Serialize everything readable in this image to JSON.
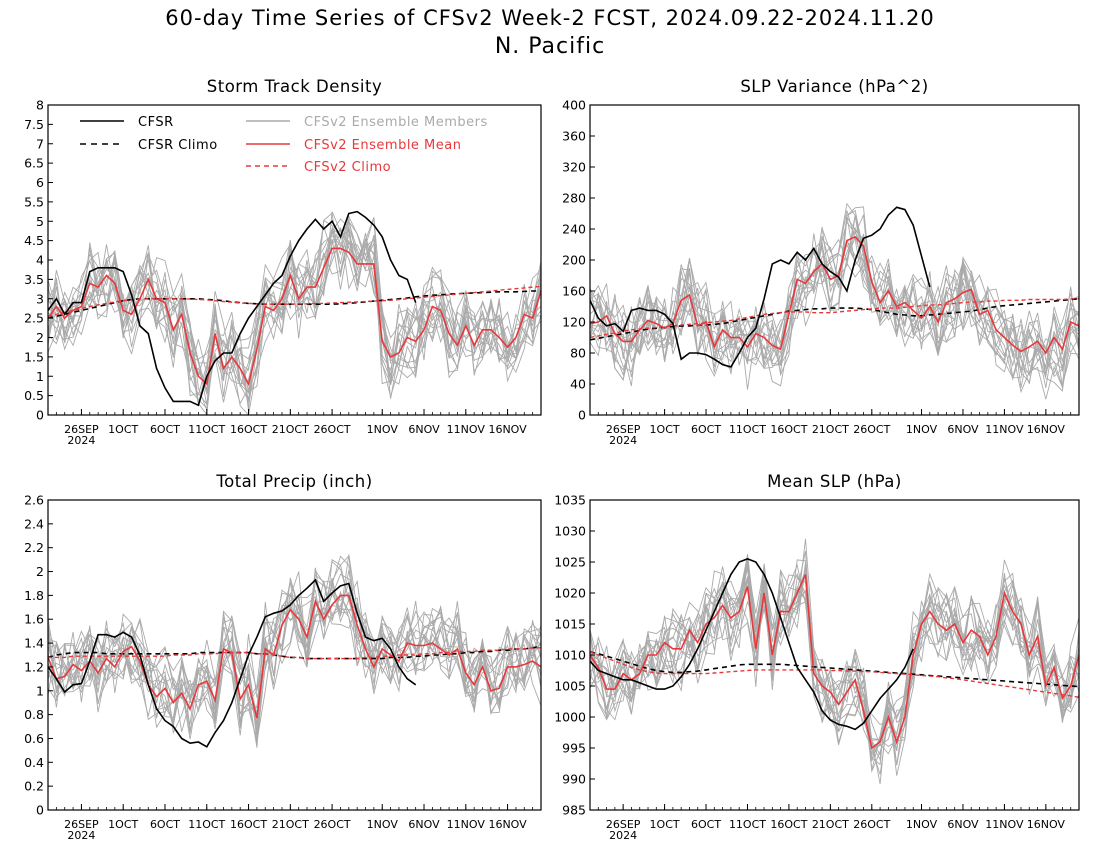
{
  "figure": {
    "title": "60-day Time Series of CFSv2 Week-2 FCST, 2024.09.22-2024.11.20",
    "subtitle": "N. Pacific"
  },
  "colors": {
    "cfsr": "#000000",
    "cfsv2_mean": "#e8383b",
    "members": "#aaaaaa"
  },
  "legend": {
    "cfsr": "CFSR",
    "cfsr_climo": "CFSR Climo",
    "members": "CFSv2 Ensemble Members",
    "ens_mean": "CFSv2 Ensemble Mean",
    "cfsv2_climo": "CFSv2 Climo"
  },
  "x_axis": {
    "start_date": "2024-09-22",
    "end_date": "2024-11-20",
    "tick_labels": [
      "26SEP",
      "1OCT",
      "6OCT",
      "11OCT",
      "16OCT",
      "21OCT",
      "26OCT",
      "1NOV",
      "6NOV",
      "11NOV",
      "16NOV"
    ],
    "year_label": "2024"
  },
  "chart_data": [
    {
      "type": "line",
      "title": "Storm Track Density",
      "ylim": [
        0,
        8
      ],
      "yticks": [
        "0",
        "0.5",
        "1",
        "1.5",
        "2",
        "2.5",
        "3",
        "3.5",
        "4",
        "4.5",
        "5",
        "5.5",
        "6",
        "6.5",
        "7",
        "7.5",
        "8"
      ],
      "series": [
        {
          "name": "CFSR",
          "values": [
            2.7,
            3.0,
            2.6,
            2.9,
            2.9,
            3.7,
            3.8,
            3.8,
            3.8,
            3.7,
            3.1,
            2.3,
            2.1,
            1.2,
            0.7,
            0.35,
            0.35,
            0.35,
            0.25,
            1.0,
            1.4,
            1.6,
            1.6,
            2.1,
            2.5,
            2.8,
            3.1,
            3.4,
            3.6,
            4.1,
            4.5,
            4.8,
            5.05,
            4.8,
            5.0,
            4.6,
            5.2,
            5.25,
            5.1,
            4.9,
            4.6,
            4.0,
            3.6,
            3.5,
            2.9
          ]
        },
        {
          "name": "CFSR Climo",
          "values": [
            2.5,
            2.55,
            2.6,
            2.65,
            2.7,
            2.75,
            2.8,
            2.85,
            2.9,
            2.95,
            2.98,
            3.0,
            3.0,
            3.0,
            3.0,
            3.0,
            3.0,
            3.0,
            3.0,
            2.98,
            2.97,
            2.95,
            2.92,
            2.9,
            2.88,
            2.87,
            2.86,
            2.86,
            2.86,
            2.86,
            2.86,
            2.86,
            2.86,
            2.86,
            2.86,
            2.87,
            2.88,
            2.9,
            2.92,
            2.94,
            2.96,
            2.98,
            3.0,
            3.02,
            3.05,
            3.07,
            3.09,
            3.1,
            3.12,
            3.13,
            3.14,
            3.15,
            3.16,
            3.17,
            3.18,
            3.18,
            3.18,
            3.19,
            3.2,
            3.2
          ]
        },
        {
          "name": "CFSv2 Ensemble Mean",
          "values": [
            2.5,
            2.8,
            2.5,
            2.7,
            2.8,
            3.4,
            3.3,
            3.6,
            3.4,
            2.7,
            2.6,
            3.0,
            3.5,
            3.0,
            2.9,
            2.2,
            2.6,
            1.6,
            1.0,
            0.8,
            2.1,
            1.2,
            1.5,
            1.2,
            0.8,
            1.7,
            2.8,
            2.7,
            3.0,
            3.6,
            3.0,
            3.3,
            3.3,
            3.8,
            4.3,
            4.3,
            4.2,
            3.9,
            3.9,
            3.9,
            1.9,
            1.5,
            1.6,
            2.0,
            1.9,
            2.2,
            2.8,
            2.7,
            2.1,
            1.8,
            2.3,
            1.8,
            2.2,
            2.2,
            2.0,
            1.75,
            2.0,
            2.6,
            2.5,
            3.2
          ]
        },
        {
          "name": "CFSv2 Climo",
          "values": [
            2.55,
            2.6,
            2.65,
            2.7,
            2.75,
            2.8,
            2.84,
            2.88,
            2.92,
            2.95,
            2.97,
            2.99,
            3.0,
            3.0,
            3.0,
            3.0,
            3.0,
            2.99,
            2.98,
            2.97,
            2.95,
            2.93,
            2.91,
            2.89,
            2.88,
            2.87,
            2.86,
            2.86,
            2.86,
            2.86,
            2.87,
            2.87,
            2.88,
            2.88,
            2.89,
            2.9,
            2.91,
            2.92,
            2.93,
            2.94,
            2.95,
            2.96,
            2.98,
            3.0,
            3.02,
            3.04,
            3.06,
            3.08,
            3.1,
            3.12,
            3.14,
            3.16,
            3.18,
            3.2,
            3.22,
            3.24,
            3.26,
            3.28,
            3.3,
            3.32
          ]
        }
      ]
    },
    {
      "type": "line",
      "title": "SLP Variance (hPa^2)",
      "ylim": [
        0,
        400
      ],
      "yticks": [
        "0",
        "40",
        "80",
        "120",
        "160",
        "200",
        "240",
        "280",
        "320",
        "360",
        "400"
      ],
      "series": [
        {
          "name": "CFSR",
          "values": [
            148,
            125,
            115,
            118,
            108,
            135,
            138,
            135,
            135,
            130,
            118,
            72,
            80,
            80,
            78,
            72,
            65,
            62,
            80,
            100,
            112,
            150,
            195,
            200,
            195,
            210,
            200,
            215,
            195,
            185,
            178,
            160,
            200,
            228,
            232,
            240,
            258,
            268,
            265,
            245,
            205,
            165
          ]
        },
        {
          "name": "CFSR Climo",
          "values": [
            97,
            99,
            101,
            103,
            105,
            107,
            109,
            111,
            112,
            113,
            114,
            115,
            115,
            116,
            116,
            117,
            118,
            120,
            122,
            124,
            126,
            128,
            130,
            132,
            134,
            135,
            136,
            137,
            137,
            138,
            138,
            138,
            138,
            137,
            136,
            134,
            132,
            130,
            129,
            128,
            128,
            129,
            130,
            131,
            132,
            133,
            134,
            136,
            138,
            140,
            141,
            142,
            143,
            144,
            145,
            146,
            147,
            148,
            149,
            150
          ]
        },
        {
          "name": "CFSv2 Ensemble Mean",
          "values": [
            118,
            120,
            128,
            105,
            95,
            95,
            110,
            122,
            118,
            112,
            118,
            148,
            155,
            115,
            120,
            88,
            110,
            100,
            100,
            88,
            105,
            100,
            90,
            85,
            130,
            175,
            170,
            185,
            195,
            175,
            180,
            225,
            230,
            218,
            172,
            145,
            160,
            140,
            145,
            135,
            125,
            140,
            120,
            145,
            150,
            158,
            162,
            130,
            135,
            110,
            100,
            90,
            82,
            88,
            95,
            80,
            100,
            85,
            120,
            115
          ]
        },
        {
          "name": "CFSv2 Climo",
          "values": [
            100,
            102,
            104,
            106,
            108,
            110,
            111,
            112,
            113,
            114,
            115,
            116,
            117,
            118,
            119,
            120,
            121,
            122,
            124,
            126,
            128,
            130,
            131,
            132,
            133,
            133,
            133,
            132,
            132,
            132,
            133,
            134,
            135,
            136,
            137,
            138,
            138,
            138,
            139,
            140,
            141,
            142,
            142,
            143,
            144,
            145,
            146,
            146,
            147,
            147,
            148,
            148,
            148,
            149,
            149,
            149,
            149,
            149,
            150,
            150
          ]
        }
      ]
    },
    {
      "type": "line",
      "title": "Total Precip (inch)",
      "ylim": [
        0,
        2.6
      ],
      "yticks": [
        "0",
        "0.2",
        "0.4",
        "0.6",
        "0.8",
        "1",
        "1.2",
        "1.4",
        "1.6",
        "1.8",
        "2",
        "2.2",
        "2.4",
        "2.6"
      ],
      "series": [
        {
          "name": "CFSR",
          "values": [
            1.2,
            1.1,
            0.99,
            1.05,
            1.06,
            1.25,
            1.47,
            1.47,
            1.45,
            1.49,
            1.45,
            1.3,
            1.05,
            0.85,
            0.75,
            0.7,
            0.6,
            0.56,
            0.57,
            0.53,
            0.65,
            0.75,
            0.9,
            1.1,
            1.3,
            1.45,
            1.62,
            1.65,
            1.67,
            1.72,
            1.8,
            1.86,
            1.93,
            1.75,
            1.82,
            1.88,
            1.9,
            1.65,
            1.45,
            1.42,
            1.44,
            1.35,
            1.2,
            1.1,
            1.05
          ]
        },
        {
          "name": "CFSR Climo",
          "values": [
            1.28,
            1.3,
            1.31,
            1.32,
            1.32,
            1.32,
            1.32,
            1.31,
            1.31,
            1.31,
            1.31,
            1.31,
            1.31,
            1.31,
            1.31,
            1.31,
            1.31,
            1.31,
            1.32,
            1.32,
            1.32,
            1.32,
            1.32,
            1.32,
            1.32,
            1.31,
            1.31,
            1.3,
            1.29,
            1.28,
            1.28,
            1.27,
            1.27,
            1.27,
            1.27,
            1.27,
            1.27,
            1.27,
            1.27,
            1.27,
            1.27,
            1.28,
            1.28,
            1.28,
            1.29,
            1.29,
            1.3,
            1.3,
            1.31,
            1.31,
            1.32,
            1.32,
            1.33,
            1.33,
            1.34,
            1.34,
            1.35,
            1.35,
            1.36,
            1.37
          ]
        },
        {
          "name": "CFSv2 Ensemble Mean",
          "values": [
            1.28,
            1.1,
            1.12,
            1.22,
            1.17,
            1.25,
            1.15,
            1.27,
            1.2,
            1.33,
            1.37,
            1.25,
            1.05,
            0.95,
            1.02,
            0.9,
            0.98,
            0.85,
            1.05,
            1.08,
            0.92,
            1.35,
            1.32,
            0.93,
            1.05,
            0.77,
            1.35,
            1.3,
            1.55,
            1.68,
            1.6,
            1.45,
            1.75,
            1.6,
            1.72,
            1.8,
            1.8,
            1.55,
            1.35,
            1.2,
            1.35,
            1.3,
            1.25,
            1.4,
            1.38,
            1.38,
            1.4,
            1.35,
            1.3,
            1.35,
            1.15,
            1.05,
            1.2,
            1.0,
            1.02,
            1.2,
            1.2,
            1.22,
            1.25,
            1.2
          ]
        },
        {
          "name": "CFSv2 Climo",
          "values": [
            1.28,
            1.28,
            1.28,
            1.29,
            1.29,
            1.29,
            1.29,
            1.29,
            1.29,
            1.29,
            1.29,
            1.29,
            1.29,
            1.29,
            1.29,
            1.3,
            1.3,
            1.3,
            1.31,
            1.31,
            1.31,
            1.32,
            1.32,
            1.32,
            1.32,
            1.31,
            1.31,
            1.3,
            1.29,
            1.28,
            1.28,
            1.27,
            1.27,
            1.27,
            1.27,
            1.27,
            1.27,
            1.27,
            1.28,
            1.28,
            1.29,
            1.29,
            1.3,
            1.3,
            1.3,
            1.31,
            1.31,
            1.32,
            1.32,
            1.33,
            1.33,
            1.33,
            1.34,
            1.34,
            1.34,
            1.35,
            1.35,
            1.35,
            1.36,
            1.36
          ]
        }
      ]
    },
    {
      "type": "line",
      "title": "Mean SLP (hPa)",
      "ylim": [
        985,
        1035
      ],
      "yticks": [
        "985",
        "990",
        "995",
        "1000",
        "1005",
        "1010",
        "1015",
        "1020",
        "1025",
        "1030",
        "1035"
      ],
      "series": [
        {
          "name": "CFSR",
          "values": [
            1009,
            1007.5,
            1007,
            1006.5,
            1006,
            1006,
            1005.5,
            1005,
            1004.5,
            1004.5,
            1005,
            1006.5,
            1008.5,
            1011,
            1014,
            1017,
            1020,
            1023,
            1025,
            1025.5,
            1025,
            1023,
            1020,
            1016,
            1012,
            1008,
            1006,
            1004,
            1001,
            999.5,
            998.8,
            998.5,
            998,
            999,
            1001,
            1003,
            1004.5,
            1006,
            1008,
            1011
          ]
        },
        {
          "name": "CFSR Climo",
          "values": [
            1010.5,
            1010.2,
            1009.8,
            1009.4,
            1009,
            1008.6,
            1008.2,
            1007.8,
            1007.5,
            1007.3,
            1007.2,
            1007.2,
            1007.3,
            1007.4,
            1007.6,
            1007.8,
            1008,
            1008.2,
            1008.4,
            1008.5,
            1008.5,
            1008.5,
            1008.5,
            1008.5,
            1008.4,
            1008.3,
            1008.2,
            1008.1,
            1008,
            1007.9,
            1007.8,
            1007.7,
            1007.6,
            1007.5,
            1007.4,
            1007.3,
            1007.2,
            1007.1,
            1007,
            1006.9,
            1006.8,
            1006.7,
            1006.6,
            1006.5,
            1006.4,
            1006.3,
            1006.2,
            1006.1,
            1006,
            1005.9,
            1005.8,
            1005.7,
            1005.6,
            1005.5,
            1005.4,
            1005.3,
            1005.2,
            1005.1,
            1005,
            1004.9
          ]
        },
        {
          "name": "CFSv2 Ensemble Mean",
          "values": [
            1010,
            1008,
            1004.5,
            1004.5,
            1007,
            1006,
            1007,
            1010,
            1010,
            1012,
            1011,
            1011,
            1014,
            1012,
            1015,
            1016,
            1018,
            1016,
            1017,
            1021,
            1011,
            1020,
            1010,
            1017,
            1017,
            1020,
            1023,
            1007,
            1005,
            1004,
            1002,
            1004,
            1006,
            1001,
            995,
            996,
            1000,
            996,
            1000,
            1010,
            1015,
            1017,
            1015,
            1014,
            1015,
            1012,
            1014,
            1013,
            1010,
            1013,
            1020,
            1017,
            1015,
            1010,
            1013,
            1005,
            1008,
            1003,
            1005,
            1010
          ]
        },
        {
          "name": "CFSv2 Climo",
          "values": [
            1010.5,
            1010,
            1009.5,
            1009,
            1008.5,
            1008,
            1007.6,
            1007.3,
            1007.1,
            1007,
            1007,
            1007,
            1007,
            1007,
            1007,
            1007.1,
            1007.2,
            1007.3,
            1007.4,
            1007.5,
            1007.6,
            1007.6,
            1007.6,
            1007.6,
            1007.6,
            1007.6,
            1007.6,
            1007.6,
            1007.6,
            1007.5,
            1007.5,
            1007.4,
            1007.4,
            1007.3,
            1007.3,
            1007.2,
            1007.1,
            1007,
            1006.9,
            1006.8,
            1006.7,
            1006.6,
            1006.5,
            1006.3,
            1006.2,
            1006,
            1005.8,
            1005.6,
            1005.4,
            1005.2,
            1005,
            1004.8,
            1004.6,
            1004.4,
            1004.2,
            1004,
            1003.8,
            1003.6,
            1003.4,
            1003.2
          ]
        }
      ]
    }
  ]
}
